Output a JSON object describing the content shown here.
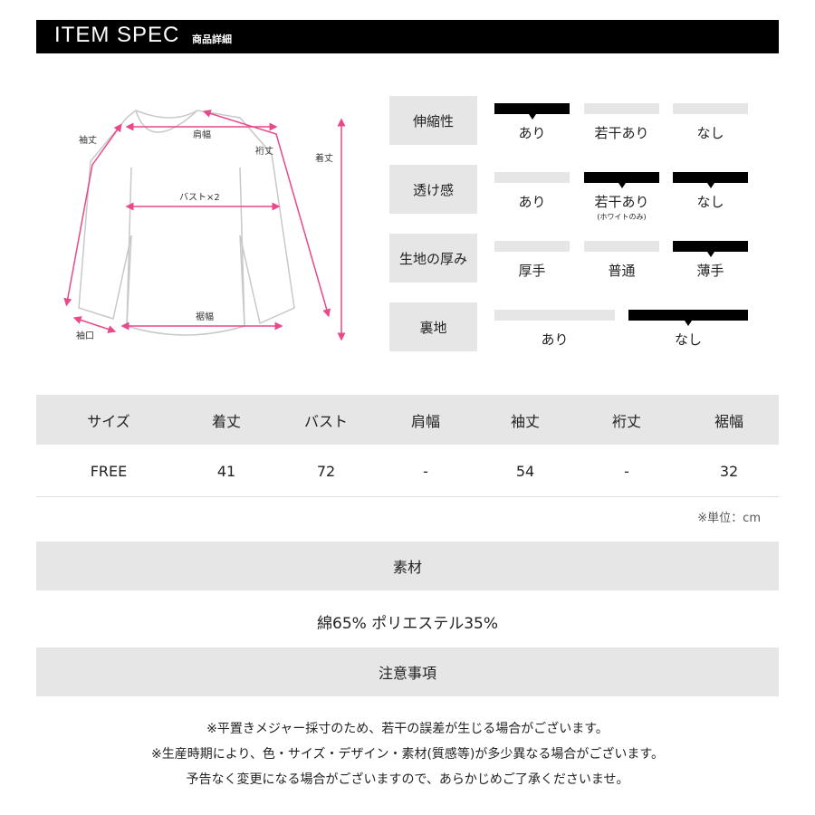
{
  "header": {
    "title": "ITEM SPEC",
    "subtitle": "商品詳細"
  },
  "diagram": {
    "labels": {
      "sleeve_length": "袖丈",
      "shoulder": "肩幅",
      "yuki": "裄丈",
      "length": "着丈",
      "bust": "バスト×2",
      "hem": "裾幅",
      "cuff": "袖口"
    },
    "accent": "#e8498a"
  },
  "specs": [
    {
      "label": "伸縮性",
      "options": [
        {
          "text": "あり",
          "selected": true
        },
        {
          "text": "若干あり",
          "selected": false
        },
        {
          "text": "なし",
          "selected": false
        }
      ]
    },
    {
      "label": "透け感",
      "options": [
        {
          "text": "あり",
          "selected": false
        },
        {
          "text": "若干あり",
          "note": "(ホワイトのみ)",
          "selected": true
        },
        {
          "text": "なし",
          "selected": true
        }
      ]
    },
    {
      "label": "生地の厚み",
      "options": [
        {
          "text": "厚手",
          "selected": false
        },
        {
          "text": "普通",
          "selected": false
        },
        {
          "text": "薄手",
          "selected": true
        }
      ]
    },
    {
      "label": "裏地",
      "options": [
        {
          "text": "あり",
          "selected": false
        },
        {
          "text": "なし",
          "selected": true
        }
      ]
    }
  ],
  "size_table": {
    "headers": [
      "サイズ",
      "着丈",
      "バスト",
      "肩幅",
      "袖丈",
      "裄丈",
      "裾幅"
    ],
    "rows": [
      [
        "FREE",
        "41",
        "72",
        "-",
        "54",
        "-",
        "32"
      ]
    ],
    "unit_note": "※単位：cm"
  },
  "material": {
    "title": "素材",
    "value": "綿65% ポリエステル35%"
  },
  "notes": {
    "title": "注意事項",
    "lines": [
      "※平置きメジャー採寸のため、若干の誤差が生じる場合がございます。",
      "※生産時期により、色・サイズ・デザイン・素材(質感等)が多少異なる場合がございます。",
      "予告なく変更になる場合がございますので、あらかじめご了承くださいませ。"
    ]
  }
}
